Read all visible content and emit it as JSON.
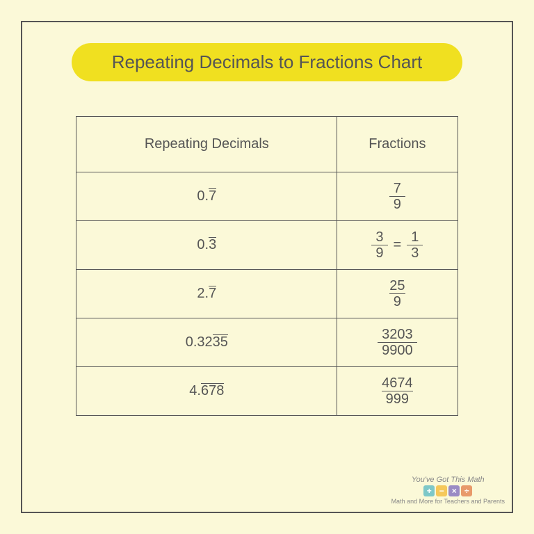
{
  "title": "Repeating Decimals to Fractions Chart",
  "columns": [
    "Repeating Decimals",
    "Fractions"
  ],
  "rows": [
    {
      "dec_pre": "0.",
      "dec_rep": "7",
      "frac": [
        {
          "n": "7",
          "d": "9"
        }
      ]
    },
    {
      "dec_pre": "0.",
      "dec_rep": "3",
      "frac": [
        {
          "n": "3",
          "d": "9"
        },
        {
          "n": "1",
          "d": "3"
        }
      ]
    },
    {
      "dec_pre": "2.",
      "dec_rep": "7",
      "frac": [
        {
          "n": "25",
          "d": "9"
        }
      ]
    },
    {
      "dec_pre": "0.32",
      "dec_rep": "35",
      "frac": [
        {
          "n": "3203",
          "d": "9900"
        }
      ]
    },
    {
      "dec_pre": "4.",
      "dec_rep": "678",
      "frac": [
        {
          "n": "4674",
          "d": "999"
        }
      ]
    }
  ],
  "logo": {
    "text": "You've Got This Math",
    "ops": [
      {
        "sym": "+",
        "bg": "#7ec8c8"
      },
      {
        "sym": "−",
        "bg": "#f5c85a"
      },
      {
        "sym": "×",
        "bg": "#9a8bc4"
      },
      {
        "sym": "÷",
        "bg": "#e89a6a"
      }
    ],
    "tag": "Math and More for Teachers and Parents"
  },
  "colors": {
    "background": "#fbf9d8",
    "border": "#555555",
    "pill": "#f0e020",
    "text": "#555555"
  }
}
